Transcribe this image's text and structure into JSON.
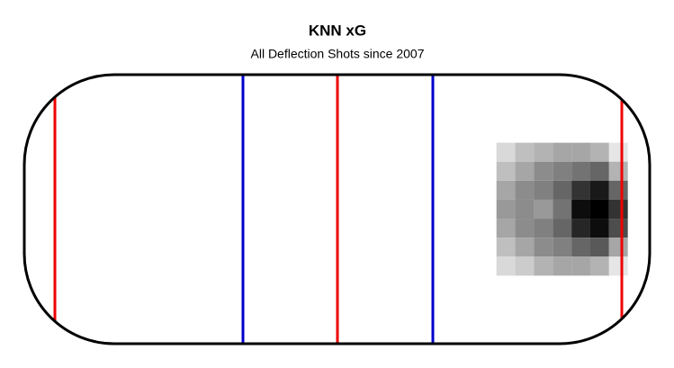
{
  "chart_data": {
    "type": "heatmap",
    "title": "KNN xG",
    "subtitle": "All Deflection Shots since 2007",
    "xlim": [
      -100,
      100
    ],
    "ylim": [
      -42.5,
      42.5
    ],
    "x": [
      54,
      60,
      66,
      72,
      78,
      84,
      90
    ],
    "y": [
      18,
      12,
      6,
      0,
      -6,
      -12,
      -18
    ],
    "z": [
      [
        0.15,
        0.25,
        0.3,
        0.35,
        0.35,
        0.3,
        0.1
      ],
      [
        0.25,
        0.35,
        0.45,
        0.5,
        0.55,
        0.6,
        0.3
      ],
      [
        0.35,
        0.45,
        0.5,
        0.6,
        0.8,
        0.9,
        0.6
      ],
      [
        0.4,
        0.45,
        0.4,
        0.55,
        0.95,
        1.0,
        0.8
      ],
      [
        0.35,
        0.45,
        0.5,
        0.6,
        0.85,
        0.95,
        0.7
      ],
      [
        0.25,
        0.35,
        0.45,
        0.5,
        0.6,
        0.65,
        0.35
      ],
      [
        0.15,
        0.2,
        0.3,
        0.35,
        0.35,
        0.3,
        0.1
      ]
    ]
  }
}
